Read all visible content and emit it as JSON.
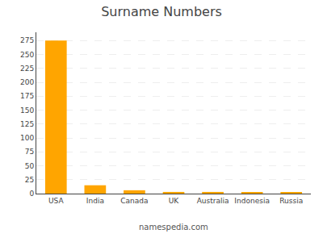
{
  "chart_data": {
    "type": "bar",
    "title": "Surname Numbers",
    "categories": [
      "USA",
      "India",
      "Canada",
      "UK",
      "Australia",
      "Indonesia",
      "Russia"
    ],
    "values": [
      275,
      15,
      6,
      3,
      3,
      2,
      2
    ],
    "color": "#FFA500",
    "ylim": [
      0,
      290
    ],
    "yticks": [
      0,
      25,
      50,
      75,
      100,
      125,
      150,
      175,
      200,
      225,
      250,
      275
    ],
    "grid": true,
    "annotations": [
      "namespedia.com"
    ]
  }
}
